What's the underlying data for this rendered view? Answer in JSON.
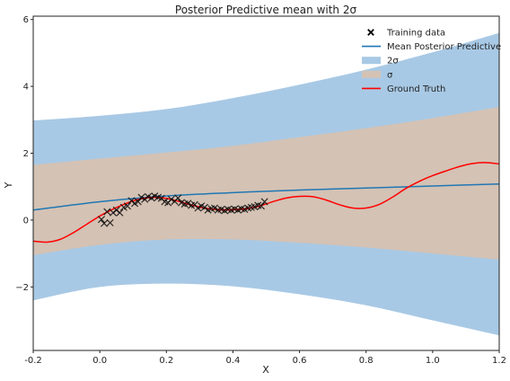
{
  "chart_data": {
    "type": "line",
    "title": "Posterior Predictive mean with 2σ",
    "xlabel": "X",
    "ylabel": "Y",
    "xlim": [
      -0.2,
      1.2
    ],
    "ylim": [
      -3.9,
      6.1
    ],
    "xticks": [
      -0.2,
      0.0,
      0.2,
      0.4,
      0.6,
      0.8,
      1.0,
      1.2
    ],
    "xtick_labels": [
      "-0.2",
      "0.0",
      "0.2",
      "0.4",
      "0.6",
      "0.8",
      "1.0",
      "1.2"
    ],
    "yticks": [
      -2,
      0,
      2,
      4,
      6
    ],
    "ytick_labels": [
      "−2",
      "0",
      "2",
      "4",
      "6"
    ],
    "grid": false,
    "legend_position": "top-right",
    "series": [
      {
        "name": "Training data",
        "kind": "scatter",
        "marker": "x",
        "color": "#000000",
        "x": [
          0.005,
          0.013,
          0.022,
          0.031,
          0.04,
          0.05,
          0.06,
          0.072,
          0.083,
          0.095,
          0.105,
          0.115,
          0.125,
          0.135,
          0.145,
          0.155,
          0.165,
          0.175,
          0.185,
          0.195,
          0.205,
          0.215,
          0.225,
          0.235,
          0.245,
          0.255,
          0.265,
          0.275,
          0.285,
          0.295,
          0.305,
          0.315,
          0.325,
          0.335,
          0.345,
          0.355,
          0.365,
          0.375,
          0.385,
          0.395,
          0.405,
          0.415,
          0.425,
          0.435,
          0.445,
          0.455,
          0.465,
          0.475,
          0.485,
          0.495
        ],
        "y": [
          0.02,
          -0.1,
          0.25,
          -0.08,
          0.22,
          0.3,
          0.22,
          0.38,
          0.42,
          0.58,
          0.5,
          0.55,
          0.68,
          0.62,
          0.7,
          0.66,
          0.72,
          0.68,
          0.65,
          0.55,
          0.52,
          0.62,
          0.56,
          0.66,
          0.52,
          0.48,
          0.5,
          0.44,
          0.46,
          0.36,
          0.42,
          0.38,
          0.3,
          0.34,
          0.36,
          0.3,
          0.32,
          0.28,
          0.32,
          0.3,
          0.33,
          0.3,
          0.34,
          0.32,
          0.36,
          0.38,
          0.4,
          0.44,
          0.42,
          0.55
        ]
      },
      {
        "name": "Mean Posterior Predictive",
        "kind": "line",
        "color": "#1f77b4",
        "x": [
          -0.2,
          0.0,
          0.2,
          0.4,
          0.6,
          0.8,
          1.0,
          1.2
        ],
        "y": [
          0.3,
          0.55,
          0.72,
          0.82,
          0.9,
          0.96,
          1.02,
          1.08
        ]
      },
      {
        "name": "2σ",
        "kind": "band",
        "color": "#a8c9e5",
        "x": [
          -0.2,
          0.0,
          0.2,
          0.4,
          0.6,
          0.8,
          1.0,
          1.2
        ],
        "upper": [
          2.98,
          3.12,
          3.32,
          3.65,
          4.05,
          4.5,
          5.02,
          5.6
        ],
        "lower": [
          -2.4,
          -2.0,
          -1.9,
          -1.98,
          -2.22,
          -2.55,
          -3.0,
          -3.45
        ]
      },
      {
        "name": "σ",
        "kind": "band",
        "color": "#d4c2b4",
        "x": [
          -0.2,
          0.0,
          0.2,
          0.4,
          0.6,
          0.8,
          1.0,
          1.2
        ],
        "upper": [
          1.65,
          1.84,
          2.02,
          2.22,
          2.48,
          2.75,
          3.05,
          3.38
        ],
        "lower": [
          -1.05,
          -0.74,
          -0.58,
          -0.58,
          -0.68,
          -0.82,
          -1.0,
          -1.18
        ]
      },
      {
        "name": "Ground Truth",
        "kind": "line",
        "color": "#ff0000",
        "x": [
          -0.2,
          -0.16,
          -0.12,
          -0.08,
          -0.04,
          0.0,
          0.04,
          0.08,
          0.12,
          0.16,
          0.2,
          0.24,
          0.28,
          0.32,
          0.36,
          0.4,
          0.44,
          0.48,
          0.52,
          0.56,
          0.6,
          0.64,
          0.68,
          0.72,
          0.76,
          0.8,
          0.84,
          0.88,
          0.92,
          0.96,
          1.0,
          1.04,
          1.08,
          1.12,
          1.16,
          1.2
        ],
        "y": [
          -0.63,
          -0.66,
          -0.58,
          -0.38,
          -0.13,
          0.12,
          0.33,
          0.5,
          0.63,
          0.68,
          0.65,
          0.55,
          0.44,
          0.35,
          0.31,
          0.31,
          0.34,
          0.42,
          0.55,
          0.66,
          0.71,
          0.7,
          0.6,
          0.46,
          0.36,
          0.36,
          0.47,
          0.69,
          0.95,
          1.16,
          1.33,
          1.47,
          1.6,
          1.69,
          1.72,
          1.68
        ]
      }
    ],
    "legend": [
      {
        "label": "Training data",
        "symbol": "x",
        "color": "#000000"
      },
      {
        "label": "Mean Posterior Predictive",
        "symbol": "line",
        "color": "#1f77b4"
      },
      {
        "label": "2σ",
        "symbol": "patch",
        "color": "#a8c9e5"
      },
      {
        "label": "σ",
        "symbol": "patch",
        "color": "#d4c2b4"
      },
      {
        "label": "Ground Truth",
        "symbol": "line",
        "color": "#ff0000"
      }
    ]
  }
}
